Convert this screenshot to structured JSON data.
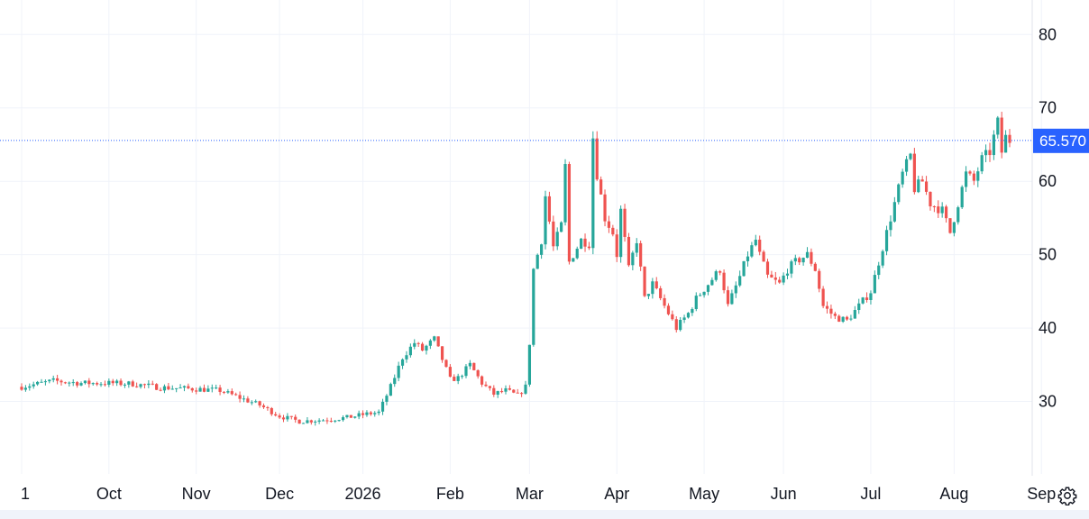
{
  "colors": {
    "up": "#26a69a",
    "down": "#ef5350",
    "grid": "#f0f3fa",
    "price_line": "#2962ff",
    "price_tag_bg": "#2962ff",
    "axis_border": "#e0e3eb",
    "text": "#131722"
  },
  "settings_icon": "gear-icon",
  "chart_data": {
    "type": "candlestick",
    "last_price_label": "65.570",
    "last_price": 65.57,
    "ylim": [
      20,
      82
    ],
    "y_ticks": [
      30,
      40,
      50,
      60,
      70,
      80
    ],
    "grid": true,
    "x_ticks": [
      {
        "label": "1",
        "index": 0
      },
      {
        "label": "Oct",
        "index": 22
      },
      {
        "label": "Nov",
        "index": 44
      },
      {
        "label": "Dec",
        "index": 65
      },
      {
        "label": "2026",
        "index": 86
      },
      {
        "label": "Feb",
        "index": 108
      },
      {
        "label": "Mar",
        "index": 128
      },
      {
        "label": "Apr",
        "index": 150
      },
      {
        "label": "May",
        "index": 172
      },
      {
        "label": "Jun",
        "index": 192
      },
      {
        "label": "Jul",
        "index": 214
      },
      {
        "label": "Aug",
        "index": 235
      },
      {
        "label": "Sep",
        "index": 257
      }
    ],
    "anchors": [
      [
        0,
        32
      ],
      [
        8,
        32.8
      ],
      [
        15,
        32.5
      ],
      [
        22,
        32.5
      ],
      [
        28,
        32.4
      ],
      [
        35,
        31.9
      ],
      [
        44,
        31.7
      ],
      [
        50,
        31.5
      ],
      [
        55,
        30.5
      ],
      [
        60,
        29.5
      ],
      [
        65,
        28
      ],
      [
        70,
        27.3
      ],
      [
        76,
        27.5
      ],
      [
        82,
        27.8
      ],
      [
        87,
        28.3
      ],
      [
        90,
        28.5
      ],
      [
        93,
        32
      ],
      [
        96,
        36
      ],
      [
        99,
        38
      ],
      [
        101,
        37
      ],
      [
        104,
        38.5
      ],
      [
        108,
        33
      ],
      [
        110,
        33.2
      ],
      [
        113,
        35
      ],
      [
        116,
        32.5
      ],
      [
        119,
        31
      ],
      [
        122,
        31.5
      ],
      [
        125,
        30.8
      ],
      [
        127,
        32
      ],
      [
        128,
        38
      ],
      [
        129,
        48
      ],
      [
        131,
        52
      ],
      [
        132,
        58
      ],
      [
        134,
        51
      ],
      [
        136,
        54
      ],
      [
        137,
        62
      ],
      [
        138,
        49
      ],
      [
        139,
        50
      ],
      [
        141,
        52
      ],
      [
        143,
        51.5
      ],
      [
        144,
        66
      ],
      [
        145,
        61
      ],
      [
        147,
        55
      ],
      [
        149,
        53
      ],
      [
        150,
        50
      ],
      [
        151,
        56
      ],
      [
        153,
        48
      ],
      [
        155,
        52
      ],
      [
        157,
        44
      ],
      [
        159,
        46
      ],
      [
        162,
        43
      ],
      [
        165,
        40
      ],
      [
        168,
        42
      ],
      [
        170,
        44
      ],
      [
        173,
        46
      ],
      [
        176,
        48
      ],
      [
        178,
        43
      ],
      [
        181,
        47
      ],
      [
        183,
        50
      ],
      [
        185,
        52
      ],
      [
        186,
        50
      ],
      [
        188,
        47
      ],
      [
        191,
        46
      ],
      [
        193,
        48
      ],
      [
        195,
        49
      ],
      [
        198,
        50
      ],
      [
        200,
        48
      ],
      [
        202,
        43
      ],
      [
        205,
        41.5
      ],
      [
        208,
        41
      ],
      [
        211,
        43
      ],
      [
        214,
        45
      ],
      [
        216,
        49
      ],
      [
        218,
        53
      ],
      [
        220,
        57
      ],
      [
        222,
        61
      ],
      [
        224,
        63.5
      ],
      [
        225,
        59
      ],
      [
        227,
        60
      ],
      [
        229,
        57
      ],
      [
        232,
        56
      ],
      [
        234,
        53
      ],
      [
        236,
        57
      ],
      [
        238,
        61
      ],
      [
        240,
        60
      ],
      [
        242,
        63
      ],
      [
        244,
        64
      ],
      [
        245,
        66
      ],
      [
        246,
        68
      ],
      [
        247,
        64
      ],
      [
        248,
        66
      ],
      [
        249,
        65.57
      ]
    ]
  }
}
